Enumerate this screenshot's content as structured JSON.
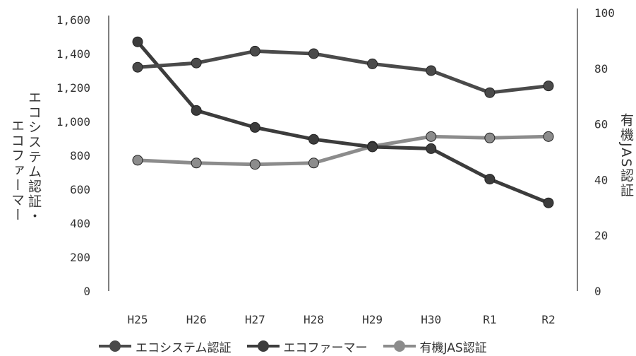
{
  "chart_data": {
    "type": "line",
    "categories": [
      "H25",
      "H26",
      "H27",
      "H28",
      "H29",
      "H30",
      "R1",
      "R2"
    ],
    "y_left": {
      "label": "エコシステム認証・エコファーマー",
      "ylim": [
        0,
        1600
      ],
      "ticks": [
        "0",
        "200",
        "400",
        "600",
        "800",
        "1,000",
        "1,200",
        "1,400",
        "1,600"
      ]
    },
    "y_right": {
      "label": "有機JAS認証",
      "ylim": [
        0,
        100
      ],
      "ticks": [
        "0",
        "20",
        "40",
        "60",
        "80",
        "100"
      ]
    },
    "series": [
      {
        "name": "エコシステム認証",
        "axis": "left",
        "color": "#4a4a4a",
        "values": [
          1320,
          1345,
          1415,
          1400,
          1340,
          1300,
          1170,
          1210
        ]
      },
      {
        "name": "エコファーマー",
        "axis": "left",
        "color": "#3c3c3c",
        "values": [
          1470,
          1065,
          965,
          895,
          850,
          840,
          660,
          520
        ]
      },
      {
        "name": "有機JAS認証",
        "axis": "right",
        "color": "#8c8c8c",
        "values": [
          47,
          46,
          45.5,
          46,
          52,
          55.5,
          55,
          55.5
        ]
      }
    ],
    "grid": false,
    "legend": "bottom"
  }
}
